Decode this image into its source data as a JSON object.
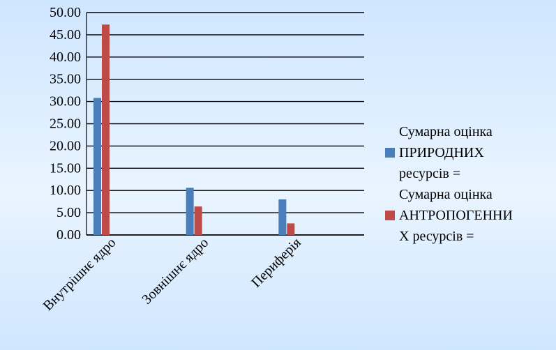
{
  "chart_data": {
    "type": "bar",
    "categories": [
      "Внутрішнє ядро",
      "Зовнішнє ядро",
      "Периферія"
    ],
    "series": [
      {
        "name": "Сумарна оцінка\nПРИРОДНИХ\nресурсів =",
        "values": [
          30.8,
          10.6,
          8.0
        ],
        "color": "#4a7ebb"
      },
      {
        "name": "Сумарна оцінка\nАНТРОПОГЕННИ\nХ ресурсів =",
        "values": [
          47.3,
          6.4,
          2.6
        ],
        "color": "#be4b48"
      }
    ],
    "ylim": [
      0,
      50
    ],
    "yticks": [
      "0.00",
      "5.00",
      "10.00",
      "15.00",
      "20.00",
      "25.00",
      "30.00",
      "35.00",
      "40.00",
      "45.00",
      "50.00"
    ],
    "grid": true,
    "legend_position": "right",
    "title": "",
    "xlabel": "",
    "ylabel": ""
  }
}
